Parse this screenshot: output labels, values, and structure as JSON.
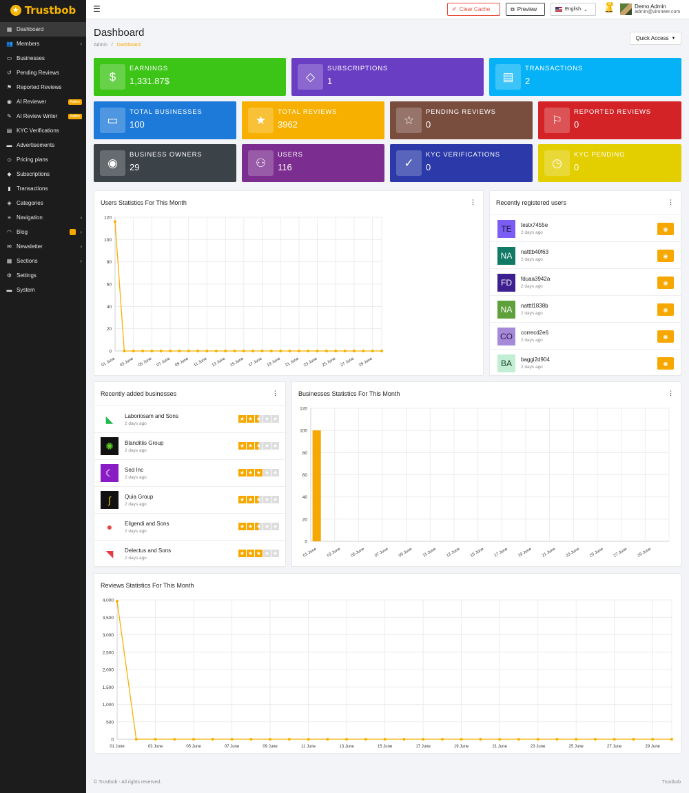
{
  "brand": {
    "name": "Trustbob"
  },
  "sidebar": {
    "items": [
      {
        "label": "Dashboard",
        "icon": "dashboard-icon",
        "glyph": "▦",
        "active": true
      },
      {
        "label": "Members",
        "icon": "users-icon",
        "glyph": "👥",
        "chevron": true
      },
      {
        "label": "Businesses",
        "icon": "briefcase-icon",
        "glyph": "▭"
      },
      {
        "label": "Pending Reviews",
        "icon": "history-icon",
        "glyph": "↺"
      },
      {
        "label": "Reported Reviews",
        "icon": "flag-icon",
        "glyph": "⚑"
      },
      {
        "label": "AI Reviewer",
        "icon": "robot-icon",
        "glyph": "◉",
        "badge": "Addon"
      },
      {
        "label": "AI Review Writer",
        "icon": "pen-icon",
        "glyph": "✎",
        "badge": "Addon"
      },
      {
        "label": "KYC Verifications",
        "icon": "id-card-icon",
        "glyph": "▤"
      },
      {
        "label": "Advertisements",
        "icon": "ad-icon",
        "glyph": "▬"
      },
      {
        "label": "Pricing plans",
        "icon": "tag-icon",
        "glyph": "◇"
      },
      {
        "label": "Subscriptions",
        "icon": "gem-icon",
        "glyph": "◆"
      },
      {
        "label": "Transactions",
        "icon": "receipt-icon",
        "glyph": "▮"
      },
      {
        "label": "Categories",
        "icon": "layers-icon",
        "glyph": "◈"
      },
      {
        "label": "Navigation",
        "icon": "bars-icon",
        "glyph": "≡",
        "chevron": true
      },
      {
        "label": "Blog",
        "icon": "rss-icon",
        "glyph": "◠",
        "chevron": true,
        "dot": true
      },
      {
        "label": "Newsletter",
        "icon": "envelope-icon",
        "glyph": "✉",
        "chevron": true
      },
      {
        "label": "Sections",
        "icon": "grid-icon",
        "glyph": "▦",
        "chevron": true
      },
      {
        "label": "Settings",
        "icon": "gear-icon",
        "glyph": "⚙"
      },
      {
        "label": "System",
        "icon": "server-icon",
        "glyph": "▬"
      }
    ]
  },
  "topbar": {
    "clear_cache": "Clear Cache",
    "preview": "Preview",
    "language": "English",
    "notif_count": "05",
    "user_name": "Demo Admin",
    "user_email": "admin@vironeer.com"
  },
  "header": {
    "title": "Dashboard",
    "breadcrumb_root": "Admin",
    "breadcrumb_sep": "/",
    "breadcrumb_current": "Dashboard",
    "quick_access": "Quick Access"
  },
  "stats": [
    {
      "label": "EARNINGS",
      "value": "1,331.87$",
      "color": "#3cc417",
      "icon": "dollar-icon",
      "glyph": "$"
    },
    {
      "label": "SUBSCRIPTIONS",
      "value": "1",
      "color": "#6a3ec2",
      "icon": "diamond-icon",
      "glyph": "◇"
    },
    {
      "label": "TRANSACTIONS",
      "value": "2",
      "color": "#06b2f7",
      "icon": "receipt-icon",
      "glyph": "▤"
    },
    {
      "label": "TOTAL BUSINESSES",
      "value": "100",
      "color": "#1e7ad9",
      "icon": "briefcase-icon",
      "glyph": "▭"
    },
    {
      "label": "TOTAL REVIEWS",
      "value": "3962",
      "color": "#f7b000",
      "icon": "star-icon",
      "glyph": "★"
    },
    {
      "label": "PENDING REVIEWS",
      "value": "0",
      "color": "#7a4e3f",
      "icon": "star-outline-icon",
      "glyph": "☆"
    },
    {
      "label": "REPORTED REVIEWS",
      "value": "0",
      "color": "#d32327",
      "icon": "flag-icon",
      "glyph": "⚐"
    },
    {
      "label": "BUSINESS OWNERS",
      "value": "29",
      "color": "#3b4248",
      "icon": "user-circle-icon",
      "glyph": "◉"
    },
    {
      "label": "USERS",
      "value": "116",
      "color": "#7b2e8f",
      "icon": "users-icon",
      "glyph": "⚇"
    },
    {
      "label": "KYC VERIFICATIONS",
      "value": "0",
      "color": "#2b3aa8",
      "icon": "user-check-icon",
      "glyph": "✓"
    },
    {
      "label": "KYC PENDING",
      "value": "0",
      "color": "#e3cf00",
      "icon": "clock-icon",
      "glyph": "◷"
    }
  ],
  "users_chart": {
    "title": "Users Statistics For This Month",
    "chart_data": {
      "type": "line",
      "x": [
        "01 June",
        "02 June",
        "03 June",
        "04 June",
        "05 June",
        "06 June",
        "07 June",
        "08 June",
        "09 June",
        "10 June",
        "11 June",
        "12 June",
        "13 June",
        "14 June",
        "15 June",
        "16 June",
        "17 June",
        "18 June",
        "19 June",
        "20 June",
        "21 June",
        "22 June",
        "23 June",
        "24 June",
        "25 June",
        "26 June",
        "27 June",
        "28 June",
        "29 June",
        "30 June"
      ],
      "xtick_labels": [
        "01 June",
        "03 June",
        "05 June",
        "07 June",
        "09 June",
        "11 June",
        "13 June",
        "15 June",
        "17 June",
        "19 June",
        "21 June",
        "23 June",
        "25 June",
        "27 June",
        "29 June"
      ],
      "values": [
        116,
        0,
        0,
        0,
        0,
        0,
        0,
        0,
        0,
        0,
        0,
        0,
        0,
        0,
        0,
        0,
        0,
        0,
        0,
        0,
        0,
        0,
        0,
        0,
        0,
        0,
        0,
        0,
        0,
        0
      ],
      "ylim": [
        0,
        120
      ],
      "yticks": [
        0,
        20,
        40,
        60,
        80,
        100,
        120
      ],
      "color": "#f7b000"
    }
  },
  "recent_users": {
    "title": "Recently registered users",
    "items": [
      {
        "initials": "TE",
        "name": "testx7455e",
        "time": "2 days ago",
        "bg": "#7b5cf5",
        "fg": "#1a1a3a"
      },
      {
        "initials": "NA",
        "name": "natttb40f63",
        "time": "2 days ago",
        "bg": "#107a66",
        "fg": "#ffffff"
      },
      {
        "initials": "FD",
        "name": "fduaa3942a",
        "time": "2 days ago",
        "bg": "#3d1f8f",
        "fg": "#ffffff"
      },
      {
        "initials": "NA",
        "name": "natttl1838b",
        "time": "2 days ago",
        "bg": "#5ea13a",
        "fg": "#ffffff"
      },
      {
        "initials": "CO",
        "name": "correcd2e6",
        "time": "2 days ago",
        "bg": "#a68ad9",
        "fg": "#2a1a4a"
      },
      {
        "initials": "BA",
        "name": "baggi2d904",
        "time": "2 days ago",
        "bg": "#c2efd3",
        "fg": "#1a3a2a"
      }
    ]
  },
  "recent_businesses": {
    "title": "Recently added businesses",
    "items": [
      {
        "name": "Laboriosam and Sons",
        "time": "2 days ago",
        "rating": 2.5,
        "logo_bg": "#ffffff",
        "logo_fg": "#1fb94c",
        "glyph": "◣"
      },
      {
        "name": "Blanditiis Group",
        "time": "2 days ago",
        "rating": 2.5,
        "logo_bg": "#111111",
        "logo_fg": "#5fd32b",
        "glyph": "✺"
      },
      {
        "name": "Sed Inc",
        "time": "2 days ago",
        "rating": 3,
        "logo_bg": "#8a1cc6",
        "logo_fg": "#ffffff",
        "glyph": "☾"
      },
      {
        "name": "Quia Group",
        "time": "2 days ago",
        "rating": 2.5,
        "logo_bg": "#111111",
        "logo_fg": "#f7d400",
        "glyph": "ʃ"
      },
      {
        "name": "Eligendi and Sons",
        "time": "2 days ago",
        "rating": 2.5,
        "logo_bg": "#ffffff",
        "logo_fg": "#e64848",
        "glyph": "●"
      },
      {
        "name": "Delectus and Sons",
        "time": "2 days ago",
        "rating": 3,
        "logo_bg": "#ffffff",
        "logo_fg": "#e63946",
        "glyph": "◥"
      }
    ]
  },
  "business_chart": {
    "title": "Businesses Statistics For This Month",
    "chart_data": {
      "type": "bar",
      "x": [
        "01 June",
        "02 June",
        "03 June",
        "04 June",
        "05 June",
        "06 June",
        "07 June",
        "08 June",
        "09 June",
        "10 June",
        "11 June",
        "12 June",
        "13 June",
        "14 June",
        "15 June",
        "16 June",
        "17 June",
        "18 June",
        "19 June",
        "20 June",
        "21 June",
        "22 June",
        "23 June",
        "24 June",
        "25 June",
        "26 June",
        "27 June",
        "28 June",
        "29 June",
        "30 June"
      ],
      "xtick_labels": [
        "01 June",
        "03 June",
        "05 June",
        "07 June",
        "09 June",
        "11 June",
        "13 June",
        "15 June",
        "17 June",
        "19 June",
        "21 June",
        "23 June",
        "25 June",
        "27 June",
        "29 June"
      ],
      "values": [
        100,
        0,
        0,
        0,
        0,
        0,
        0,
        0,
        0,
        0,
        0,
        0,
        0,
        0,
        0,
        0,
        0,
        0,
        0,
        0,
        0,
        0,
        0,
        0,
        0,
        0,
        0,
        0,
        0,
        0
      ],
      "ylim": [
        0,
        120
      ],
      "yticks": [
        0,
        20,
        40,
        60,
        80,
        100,
        120
      ],
      "color": "#f7a800"
    }
  },
  "reviews_chart": {
    "title": "Reviews Statistics For This Month",
    "chart_data": {
      "type": "line",
      "x": [
        "01 June",
        "02 June",
        "03 June",
        "04 June",
        "05 June",
        "06 June",
        "07 June",
        "08 June",
        "09 June",
        "10 June",
        "11 June",
        "12 June",
        "13 June",
        "14 June",
        "15 June",
        "16 June",
        "17 June",
        "18 June",
        "19 June",
        "20 June",
        "21 June",
        "22 June",
        "23 June",
        "24 June",
        "25 June",
        "26 June",
        "27 June",
        "28 June",
        "29 June",
        "30 June"
      ],
      "xtick_labels": [
        "01 June",
        "03 June",
        "05 June",
        "07 June",
        "09 June",
        "11 June",
        "13 June",
        "15 June",
        "17 June",
        "19 June",
        "21 June",
        "23 June",
        "25 June",
        "27 June",
        "29 June"
      ],
      "values": [
        3962,
        0,
        0,
        0,
        0,
        0,
        0,
        0,
        0,
        0,
        0,
        0,
        0,
        0,
        0,
        0,
        0,
        0,
        0,
        0,
        0,
        0,
        0,
        0,
        0,
        0,
        0,
        0,
        0,
        0
      ],
      "ylim": [
        0,
        4000
      ],
      "yticks": [
        0,
        500,
        1000,
        1500,
        2000,
        2500,
        3000,
        3500,
        4000
      ],
      "ytick_labels": [
        "0",
        "500",
        "1,000",
        "1,500",
        "2,000",
        "2,500",
        "3,000",
        "3,500",
        "4,000"
      ],
      "color": "#f7b000"
    }
  },
  "footer": {
    "copyright": "© Trustbob - All rights reserved.",
    "brand": "Trustbob"
  }
}
